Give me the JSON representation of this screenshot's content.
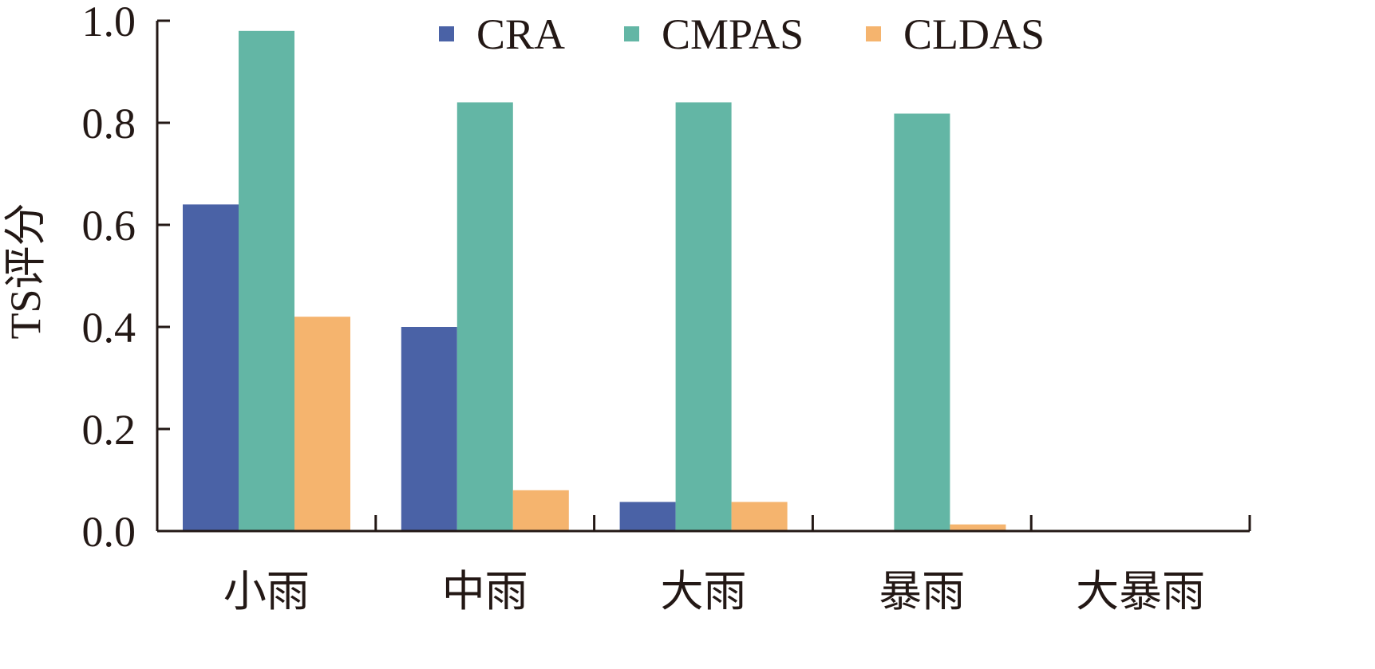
{
  "chart_data": {
    "type": "bar",
    "title": "",
    "xlabel": "",
    "ylabel": "TS评分",
    "categories": [
      "小雨",
      "中雨",
      "大雨",
      "暴雨",
      "大暴雨"
    ],
    "series": [
      {
        "name": "CRA",
        "color": "#4a62a6",
        "values": [
          0.64,
          0.4,
          0.057,
          0.0,
          0.0
        ]
      },
      {
        "name": "CMPAS",
        "color": "#63b6a5",
        "values": [
          0.98,
          0.84,
          0.84,
          0.818,
          0.0
        ]
      },
      {
        "name": "CLDAS",
        "color": "#f5b46e",
        "values": [
          0.42,
          0.08,
          0.057,
          0.013,
          0.0
        ]
      }
    ],
    "ylim": [
      0,
      1.0
    ],
    "yticks": [
      "0.0",
      "0.2",
      "0.4",
      "0.6",
      "0.8",
      "1.0"
    ],
    "grid": false,
    "legend": "top"
  }
}
